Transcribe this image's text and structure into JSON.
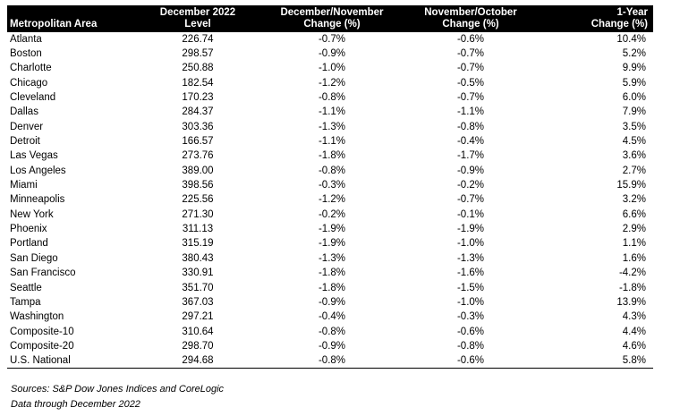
{
  "table": {
    "headers": [
      {
        "l1": "",
        "l2": "Metropolitan Area"
      },
      {
        "l1": "December 2022",
        "l2": "Level"
      },
      {
        "l1": "December/November",
        "l2": "Change (%)"
      },
      {
        "l1": "November/October",
        "l2": "Change (%)"
      },
      {
        "l1": "1-Year",
        "l2": "Change (%)"
      }
    ],
    "rows": [
      [
        "Atlanta",
        "226.74",
        "-0.7%",
        "-0.6%",
        "10.4%"
      ],
      [
        "Boston",
        "298.57",
        "-0.9%",
        "-0.7%",
        "5.2%"
      ],
      [
        "Charlotte",
        "250.88",
        "-1.0%",
        "-0.7%",
        "9.9%"
      ],
      [
        "Chicago",
        "182.54",
        "-1.2%",
        "-0.5%",
        "5.9%"
      ],
      [
        "Cleveland",
        "170.23",
        "-0.8%",
        "-0.7%",
        "6.0%"
      ],
      [
        "Dallas",
        "284.37",
        "-1.1%",
        "-1.1%",
        "7.9%"
      ],
      [
        "Denver",
        "303.36",
        "-1.3%",
        "-0.8%",
        "3.5%"
      ],
      [
        "Detroit",
        "166.57",
        "-1.1%",
        "-0.4%",
        "4.5%"
      ],
      [
        "Las Vegas",
        "273.76",
        "-1.8%",
        "-1.7%",
        "3.6%"
      ],
      [
        "Los Angeles",
        "389.00",
        "-0.8%",
        "-0.9%",
        "2.7%"
      ],
      [
        "Miami",
        "398.56",
        "-0.3%",
        "-0.2%",
        "15.9%"
      ],
      [
        "Minneapolis",
        "225.56",
        "-1.2%",
        "-0.7%",
        "3.2%"
      ],
      [
        "New York",
        "271.30",
        "-0.2%",
        "-0.1%",
        "6.6%"
      ],
      [
        "Phoenix",
        "311.13",
        "-1.9%",
        "-1.9%",
        "2.9%"
      ],
      [
        "Portland",
        "315.19",
        "-1.9%",
        "-1.0%",
        "1.1%"
      ],
      [
        "San Diego",
        "380.43",
        "-1.3%",
        "-1.3%",
        "1.6%"
      ],
      [
        "San Francisco",
        "330.91",
        "-1.8%",
        "-1.6%",
        "-4.2%"
      ],
      [
        "Seattle",
        "351.70",
        "-1.8%",
        "-1.5%",
        "-1.8%"
      ],
      [
        "Tampa",
        "367.03",
        "-0.9%",
        "-1.0%",
        "13.9%"
      ],
      [
        "Washington",
        "297.21",
        "-0.4%",
        "-0.3%",
        "4.3%"
      ],
      [
        "Composite-10",
        "310.64",
        "-0.8%",
        "-0.6%",
        "4.4%"
      ],
      [
        "Composite-20",
        "298.70",
        "-0.9%",
        "-0.8%",
        "4.6%"
      ],
      [
        "U.S. National",
        "294.68",
        "-0.8%",
        "-0.6%",
        "5.8%"
      ]
    ]
  },
  "notes": {
    "sources": "Sources: S&P Dow Jones Indices and CoreLogic",
    "data_through": "Data through December 2022"
  },
  "colors": {
    "header_bg": "#000000",
    "header_text": "#ffffff"
  }
}
